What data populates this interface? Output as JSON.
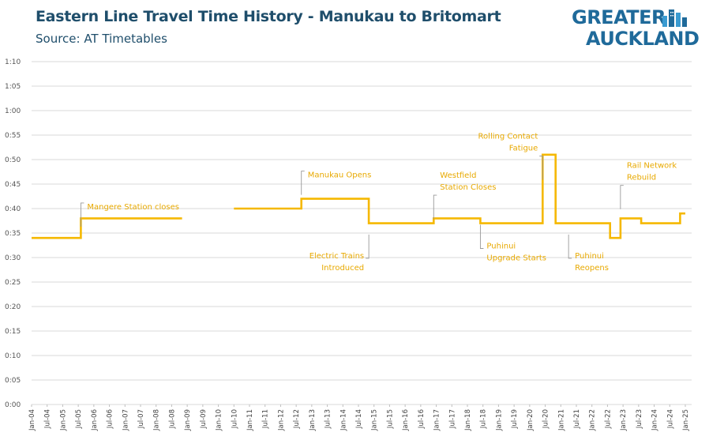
{
  "header": {
    "title": "Eastern Line Travel Time History - Manukau to Britomart",
    "subtitle": "Source: AT Timetables"
  },
  "logo": {
    "line1": "GREATER",
    "line2": "AUCKLAND",
    "color": "#1f6a9a",
    "icon": "city-skyline-icon"
  },
  "chart_data": {
    "type": "line",
    "title": "Eastern Line Travel Time History - Manukau to Britomart",
    "subtitle": "Source: AT Timetables",
    "xlabel": "",
    "ylabel": "",
    "line_color": "#f5b800",
    "annotation_color": "#e8a900",
    "y_range_minutes": [
      0,
      70
    ],
    "y_ticks": [
      "0:00",
      "0:05",
      "0:10",
      "0:15",
      "0:20",
      "0:25",
      "0:30",
      "0:35",
      "0:40",
      "0:45",
      "0:50",
      "0:55",
      "1:00",
      "1:05",
      "1:10"
    ],
    "x_ticks": [
      "Jan-04",
      "Jul-04",
      "Jan-05",
      "Jul-05",
      "Jan-06",
      "Jul-06",
      "Jan-07",
      "Jul-07",
      "Jan-08",
      "Jul-08",
      "Jan-09",
      "Jul-09",
      "Jan-10",
      "Jul-10",
      "Jan-11",
      "Jul-11",
      "Jan-12",
      "Jul-12",
      "Jan-13",
      "Jul-13",
      "Jan-14",
      "Jul-14",
      "Jan-15",
      "Jul-15",
      "Jan-16",
      "Jul-16",
      "Jan-17",
      "Jul-17",
      "Jan-18",
      "Jul-18",
      "Jan-19",
      "Jul-19",
      "Jan-20",
      "Jul-20",
      "Jan-21",
      "Jul-21",
      "Jan-22",
      "Jul-22",
      "Jan-23",
      "Jul-23",
      "Jan-24",
      "Jul-24",
      "Jan-25"
    ],
    "grid": "horizontal",
    "series": [
      {
        "segments": [
          [
            [
              "2004-01",
              34
            ],
            [
              "2005-08",
              34
            ],
            [
              "2005-08",
              38
            ],
            [
              "2008-11",
              38
            ]
          ],
          [
            [
              "2010-07",
              40
            ],
            [
              "2012-09",
              40
            ],
            [
              "2012-09",
              42
            ],
            [
              "2014-11",
              42
            ],
            [
              "2014-11",
              37
            ],
            [
              "2016-12",
              37
            ],
            [
              "2016-12",
              38
            ],
            [
              "2018-06",
              38
            ],
            [
              "2018-06",
              37
            ],
            [
              "2020-06",
              37
            ],
            [
              "2020-06",
              51
            ],
            [
              "2020-11",
              51
            ],
            [
              "2020-11",
              37
            ],
            [
              "2022-08",
              37
            ],
            [
              "2022-08",
              34
            ],
            [
              "2022-12",
              34
            ],
            [
              "2022-12",
              38
            ],
            [
              "2023-08",
              38
            ],
            [
              "2023-08",
              37
            ],
            [
              "2024-11",
              37
            ],
            [
              "2024-11",
              39
            ],
            [
              "2025-01",
              39
            ]
          ]
        ]
      }
    ],
    "annotations": [
      {
        "lines": [
          "Mangere Station closes"
        ],
        "date": "2005-08",
        "minutes": 40.5,
        "align": "start",
        "side": "above"
      },
      {
        "lines": [
          "Manukau Opens"
        ],
        "date": "2012-09",
        "minutes": 47,
        "align": "start",
        "side": "above"
      },
      {
        "lines": [
          "Electric Trains",
          "Introduced"
        ],
        "date": "2014-11",
        "minutes": 30.5,
        "align": "end",
        "side": "below"
      },
      {
        "lines": [
          "Westfield",
          "Station Closes"
        ],
        "date": "2016-12",
        "minutes": 44.5,
        "align": "start",
        "side": "above"
      },
      {
        "lines": [
          "Puhinui",
          "Upgrade Starts"
        ],
        "date": "2018-06",
        "minutes": 32.5,
        "align": "start",
        "side": "below"
      },
      {
        "lines": [
          "Rolling Contact",
          "Fatigue"
        ],
        "date": "2020-06",
        "minutes": 52.5,
        "align": "end",
        "side": "above"
      },
      {
        "lines": [
          "Puhinui",
          "Reopens"
        ],
        "date": "2021-04",
        "minutes": 30.5,
        "align": "start",
        "side": "below"
      },
      {
        "lines": [
          "Rail Network",
          "Rebuild"
        ],
        "date": "2022-12",
        "minutes": 46.5,
        "align": "start",
        "side": "above"
      }
    ]
  }
}
